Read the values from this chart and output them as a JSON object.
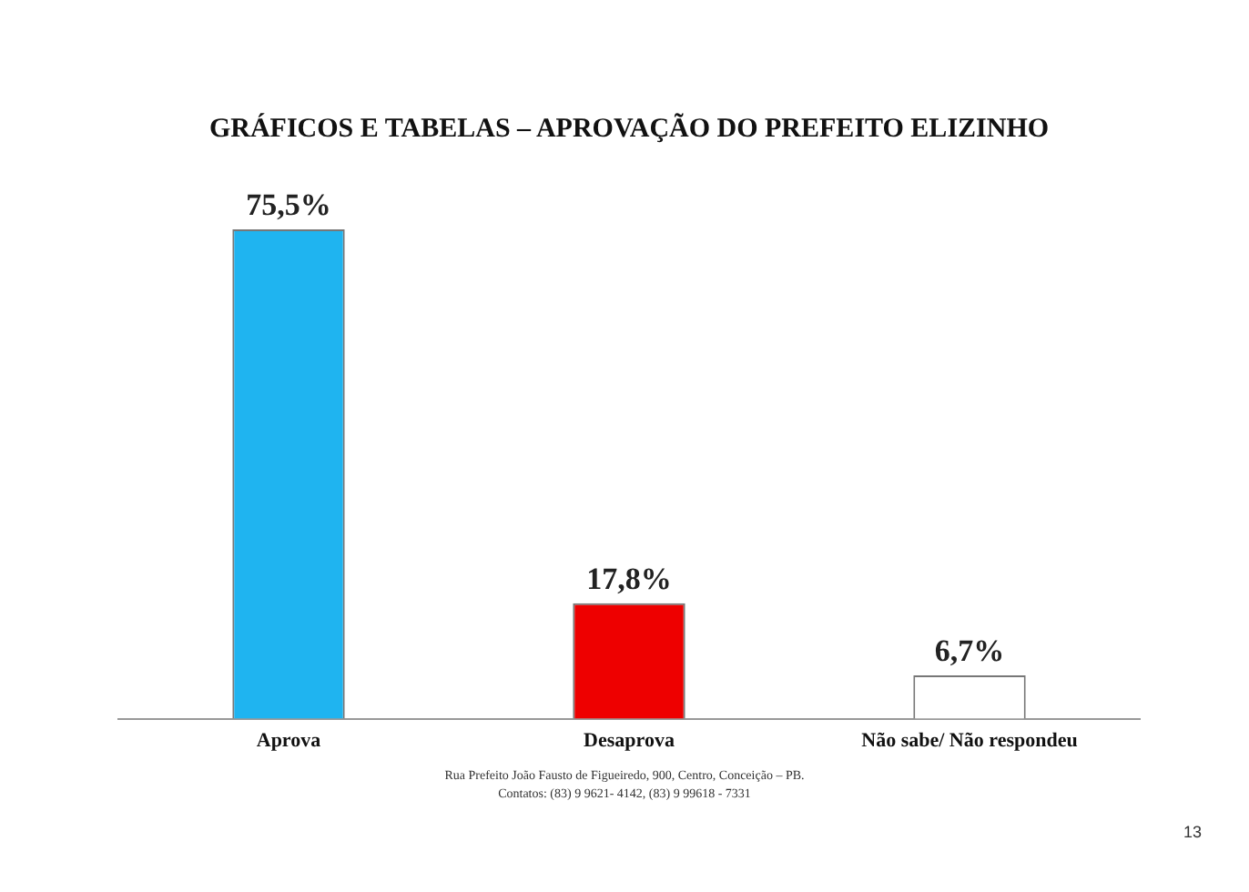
{
  "chart_data": {
    "type": "bar",
    "title": "GRÁFICOS E TABELAS – APROVAÇÃO DO PREFEITO ELIZINHO",
    "categories": [
      "Aprova",
      "Desaprova",
      "Não sabe/ Não respondeu"
    ],
    "values": [
      75.5,
      17.8,
      6.7
    ],
    "value_labels": [
      "75,5%",
      "17,8%",
      "6,7%"
    ],
    "colors": [
      "#1fb4f0",
      "#ee0000",
      "#ffffff"
    ],
    "annotations": [
      "Rua Prefeito João Fausto de Figueiredo, 900, Centro, Conceição – PB.",
      "Contatos: (83) 9 9621- 4142, (83) 9 99618 - 7331",
      "13"
    ],
    "grid": false,
    "legend": false
  }
}
